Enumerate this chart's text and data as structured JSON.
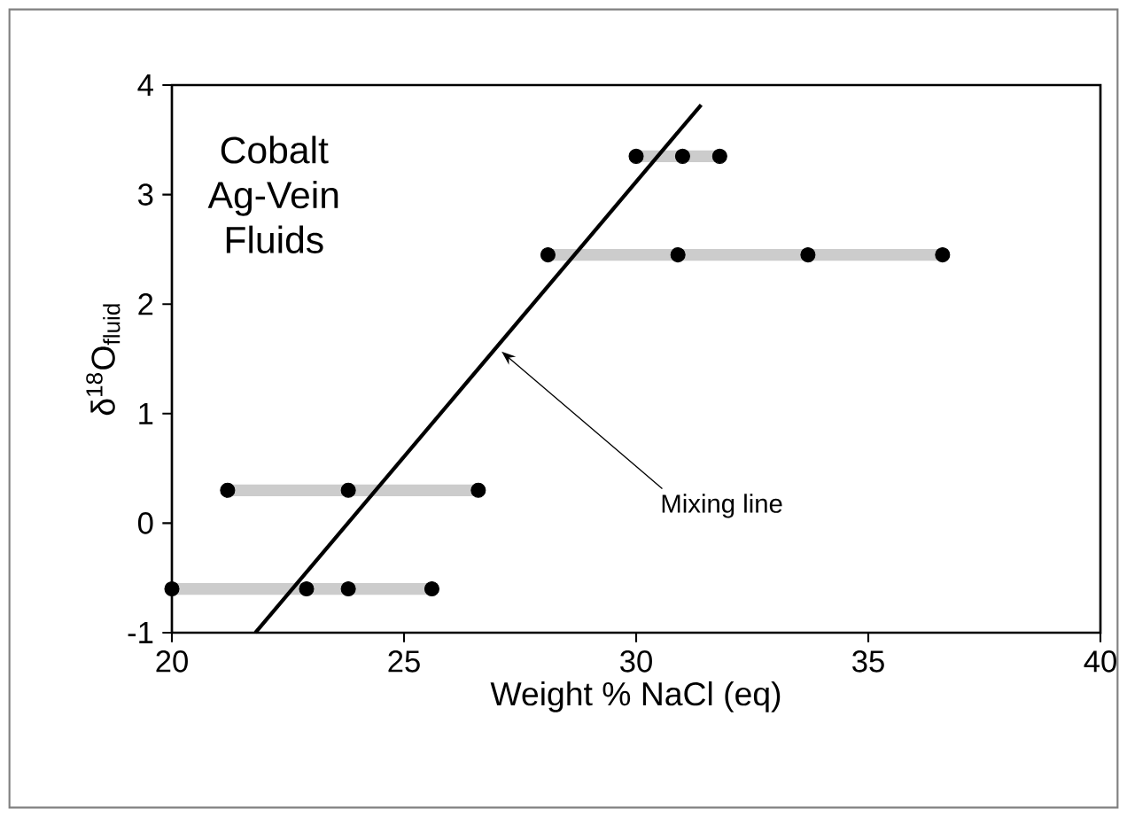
{
  "chart_data": {
    "type": "scatter",
    "xlabel": "Weight % NaCl (eq)",
    "ylabel": "δ$^{18}$O$_{fluid}$",
    "xlim": [
      20,
      40
    ],
    "ylim": [
      -1,
      4
    ],
    "xticks": [
      20,
      25,
      30,
      35,
      40
    ],
    "yticks": [
      -1,
      0,
      1,
      2,
      3,
      4
    ],
    "series": [
      {
        "type": "line",
        "color": "#cccccc",
        "x": [
          30.0,
          31.8
        ],
        "values": [
          3.35,
          3.35
        ]
      },
      {
        "type": "line",
        "color": "#cccccc",
        "x": [
          28.1,
          36.6
        ],
        "values": [
          2.45,
          2.45
        ]
      },
      {
        "type": "line",
        "color": "#cccccc",
        "x": [
          21.2,
          26.6
        ],
        "values": [
          0.3,
          0.3
        ]
      },
      {
        "type": "line",
        "color": "#cccccc",
        "x": [
          20.0,
          25.6
        ],
        "values": [
          -0.6,
          -0.6
        ]
      },
      {
        "color": "#000000",
        "marker": "circle",
        "x": [
          30.0,
          31.0,
          31.8,
          28.1,
          30.9,
          33.7,
          36.6,
          21.2,
          23.8,
          26.6,
          20.0,
          22.9,
          23.8,
          25.6
        ],
        "values": [
          3.35,
          3.35,
          3.35,
          2.45,
          2.45,
          2.45,
          2.45,
          0.3,
          0.3,
          0.3,
          -0.6,
          -0.6,
          -0.6,
          -0.6
        ]
      },
      {
        "type": "line",
        "color": "#000000",
        "x": [
          21.8,
          31.4
        ],
        "values": [
          -1,
          3.82
        ]
      }
    ],
    "annotations": [
      "Cobalt Ag-Vein Fluids",
      {
        "text": "Mixing line",
        "x": 27.0,
        "y": 1.61
      }
    ]
  }
}
